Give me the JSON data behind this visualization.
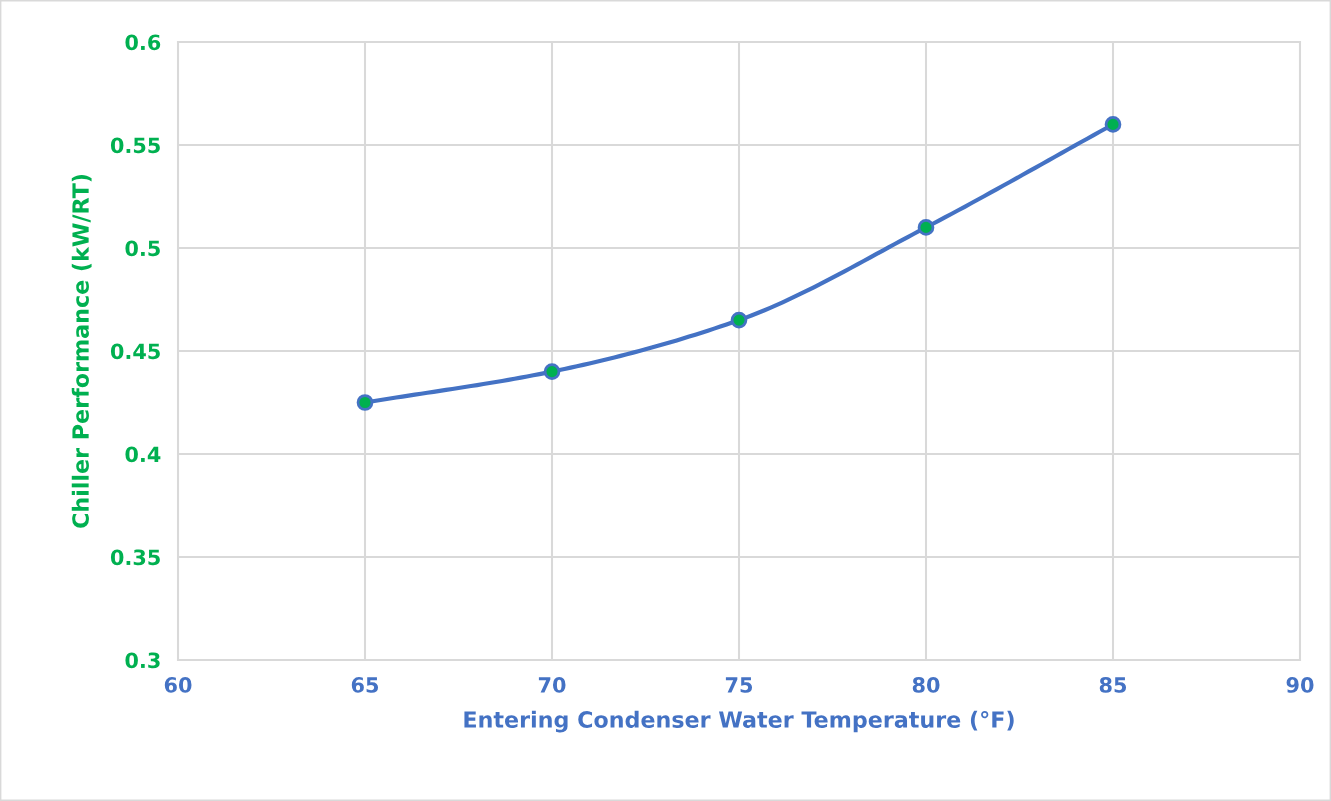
{
  "chart_data": {
    "type": "line",
    "xlabel": "Entering Condenser Water Temperature (°F)",
    "ylabel": "Chiller Performance (kW/RT)",
    "x": [
      65,
      70,
      75,
      80,
      85
    ],
    "series": [
      {
        "color": "#4472c4",
        "values": [
          0.425,
          0.44,
          0.465,
          0.51,
          0.56
        ]
      }
    ],
    "xlim": [
      60,
      90
    ],
    "xticks": [
      60,
      65,
      70,
      75,
      80,
      85,
      90
    ],
    "ylim": [
      0.3,
      0.6
    ],
    "yticks": [
      0.3,
      0.35,
      0.4,
      0.45,
      0.5,
      0.55,
      0.6
    ],
    "grid": true,
    "marker": "circle",
    "line_style": "solid"
  }
}
